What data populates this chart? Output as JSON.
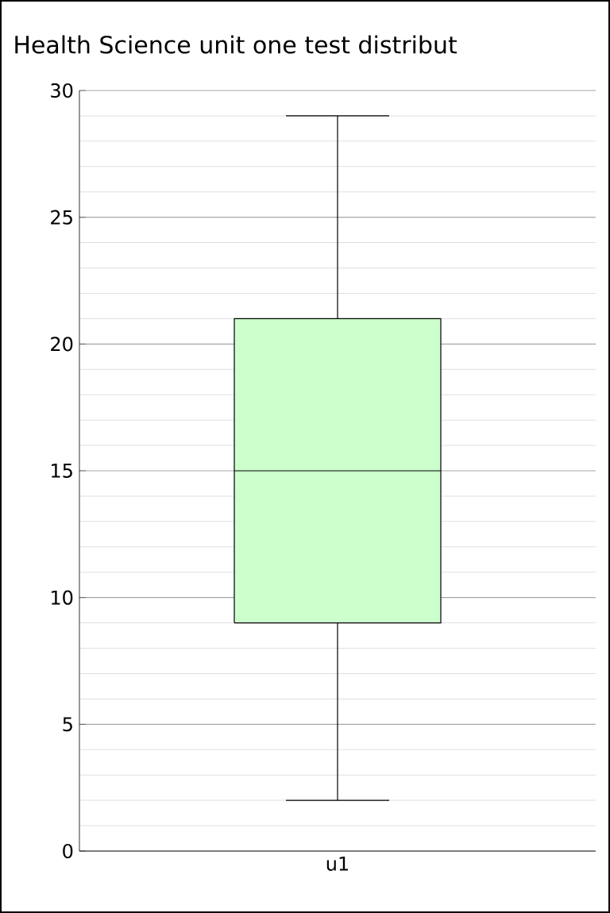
{
  "chart_data": {
    "type": "box",
    "title": "Health Science unit one test distribut",
    "categories": [
      "u1"
    ],
    "series": [
      {
        "color": "#ccffcc",
        "boxes": [
          {
            "low": 2,
            "q1": 9,
            "median": 15,
            "q3": 21,
            "high": 29
          }
        ]
      }
    ],
    "ylim": [
      0,
      30
    ],
    "yticks": [
      0,
      5,
      10,
      15,
      20,
      25,
      30
    ],
    "grid": "y"
  }
}
